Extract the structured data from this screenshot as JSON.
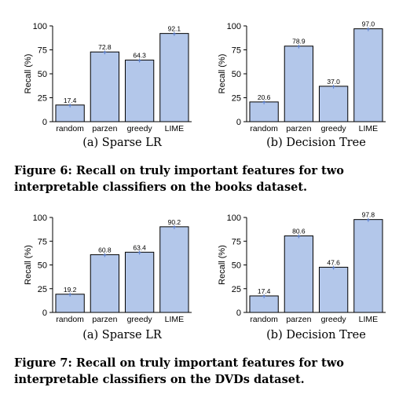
{
  "colors": {
    "bar_fill": "#b3c7ea",
    "bar_stroke": "#000000",
    "marker": "#5a7fcf"
  },
  "figure6": {
    "caption_lines": [
      "Figure 6: Recall on truly important features for two",
      "interpretable classifiers on the books dataset."
    ]
  },
  "figure7": {
    "caption_lines": [
      "Figure 7: Recall on truly important features for two",
      "interpretable classifiers on the DVDs dataset."
    ]
  },
  "chart_data": [
    {
      "type": "bar",
      "subtitle": "(a) Sparse LR",
      "ylabel": "Recall (%)",
      "ylim": [
        0,
        100
      ],
      "yticks": [
        0,
        25,
        50,
        75,
        100
      ],
      "categories": [
        "random",
        "parzen",
        "greedy",
        "LIME"
      ],
      "values": [
        17.4,
        72.8,
        64.3,
        92.1
      ],
      "value_labels": [
        "17.4",
        "72.8",
        "64.3",
        "92.1"
      ]
    },
    {
      "type": "bar",
      "subtitle": "(b) Decision Tree",
      "ylabel": "Recall (%)",
      "ylim": [
        0,
        100
      ],
      "yticks": [
        0,
        25,
        50,
        75,
        100
      ],
      "categories": [
        "random",
        "parzen",
        "greedy",
        "LIME"
      ],
      "values": [
        20.6,
        78.9,
        37.0,
        97.0
      ],
      "value_labels": [
        "20.6",
        "78.9",
        "37.0",
        "97.0"
      ]
    },
    {
      "type": "bar",
      "subtitle": "(a) Sparse LR",
      "ylabel": "Recall (%)",
      "ylim": [
        0,
        100
      ],
      "yticks": [
        0,
        25,
        50,
        75,
        100
      ],
      "categories": [
        "random",
        "parzen",
        "greedy",
        "LIME"
      ],
      "values": [
        19.2,
        60.8,
        63.4,
        90.2
      ],
      "value_labels": [
        "19.2",
        "60.8",
        "63.4",
        "90.2"
      ]
    },
    {
      "type": "bar",
      "subtitle": "(b) Decision Tree",
      "ylabel": "Recall (%)",
      "ylim": [
        0,
        100
      ],
      "yticks": [
        0,
        25,
        50,
        75,
        100
      ],
      "categories": [
        "random",
        "parzen",
        "greedy",
        "LIME"
      ],
      "values": [
        17.4,
        80.6,
        47.6,
        97.8
      ],
      "value_labels": [
        "17.4",
        "80.6",
        "47.6",
        "97.8"
      ]
    }
  ]
}
